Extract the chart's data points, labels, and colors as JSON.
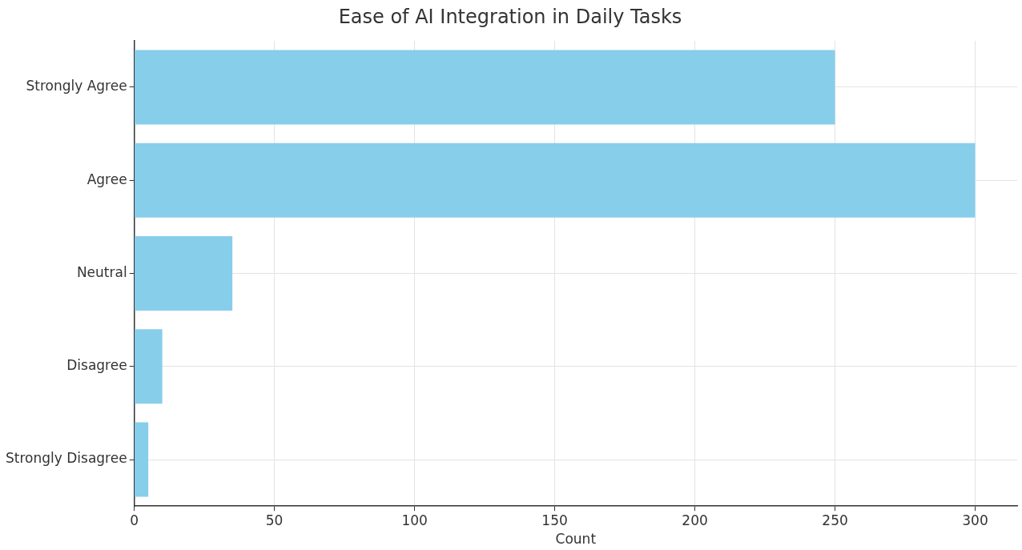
{
  "chart_data": {
    "type": "bar",
    "orientation": "horizontal",
    "title": "Ease of AI Integration in Daily Tasks",
    "xlabel": "Count",
    "categories": [
      "Strongly Agree",
      "Agree",
      "Neutral",
      "Disagree",
      "Strongly Disagree"
    ],
    "values": [
      250,
      300,
      35,
      10,
      5
    ],
    "color": "#87ceeb",
    "xlim": [
      0,
      315
    ],
    "xticks": [
      0,
      50,
      100,
      150,
      200,
      250,
      300
    ],
    "grid": true,
    "legend": false
  }
}
